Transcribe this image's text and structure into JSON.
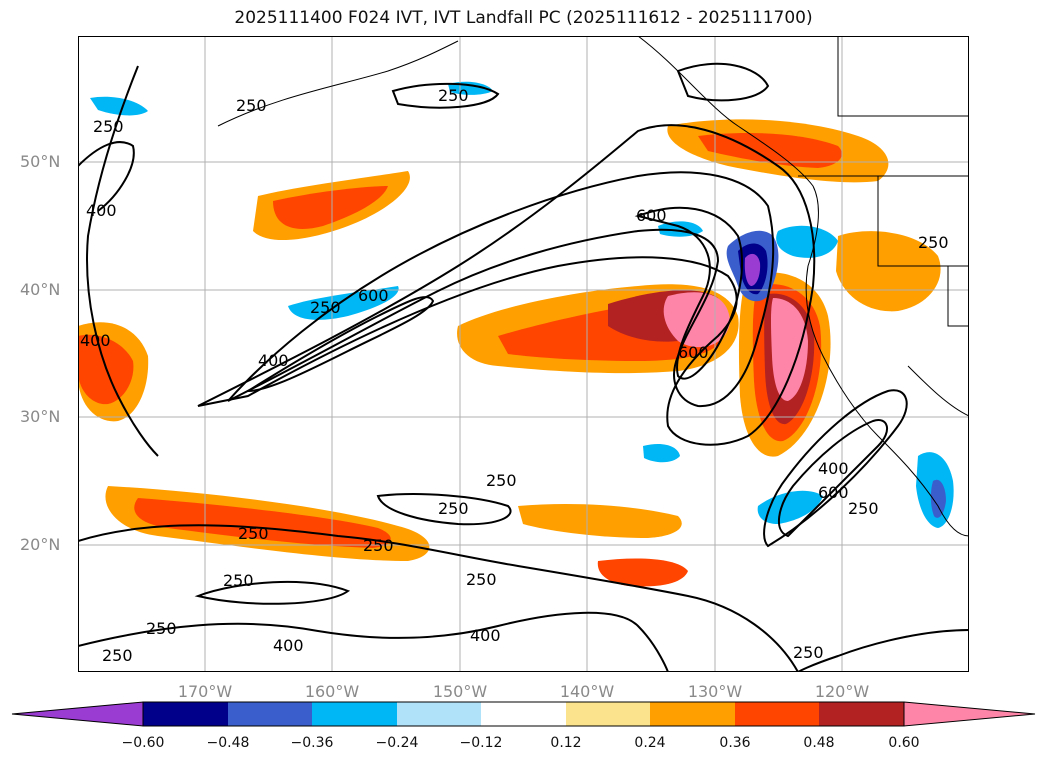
{
  "title": "2025111400 F024 IVT, IVT Landfall PC (2025111612 - 2025111700)",
  "axes": {
    "lat_labels": [
      "50°N",
      "40°N",
      "30°N",
      "20°N"
    ],
    "lon_labels": [
      "170°W",
      "160°W",
      "150°W",
      "140°W",
      "130°W",
      "120°W"
    ]
  },
  "contour_labels": {
    "c250": "250",
    "c400": "400",
    "c600": "600",
    "c_edge": "400"
  },
  "colorbar": {
    "ticks": [
      "−0.60",
      "−0.48",
      "−0.36",
      "−0.24",
      "−0.12",
      "0.12",
      "0.24",
      "0.36",
      "0.48",
      "0.60"
    ],
    "colors": {
      "lt_neg060": "#9a3bd1",
      "neg060_neg048": "#00008b",
      "neg048_neg036": "#3a5fcd",
      "neg036_neg024": "#00b7f5",
      "neg024_neg012": "#b0e2fa",
      "neg012_012": "#ffffff",
      "p012_024": "#fbe38e",
      "p024_036": "#ff9f00",
      "p036_048": "#ff4500",
      "p048_060": "#b22222",
      "gt_060": "#ff85a8"
    }
  }
}
